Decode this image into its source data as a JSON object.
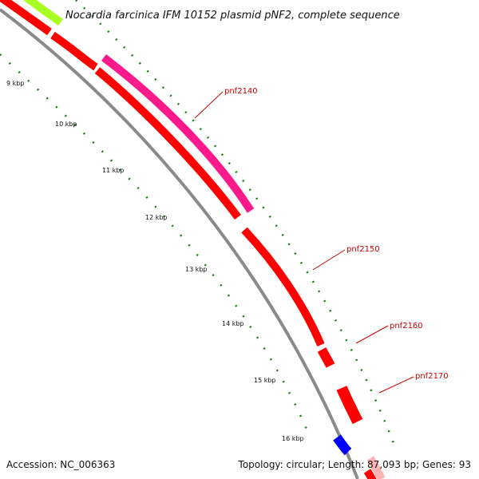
{
  "title": "Nocardia farcinica IFM 10152 plasmid pNF2, complete sequence",
  "footer": {
    "accession": "Accession: NC_006363",
    "summary": "Topology: circular; Length: 87,093 bp; Genes: 93"
  },
  "ticks": [
    "9 kbp",
    "10 kbp",
    "11 kbp",
    "12 kbp",
    "13 kbp",
    "14 kbp",
    "15 kbp",
    "16 kbp"
  ],
  "gene_labels": [
    "pnf2140",
    "pnf2150",
    "pnf2160",
    "pnf2170"
  ],
  "colors": {
    "backbone": "#8a8a8a",
    "cds": "#ff0000",
    "cds_alt": "#ff1a8c",
    "cds_green": "#aaff22",
    "cds_blue": "#0000ff",
    "tick": "#1a7a1a",
    "label": "#cc0000"
  }
}
